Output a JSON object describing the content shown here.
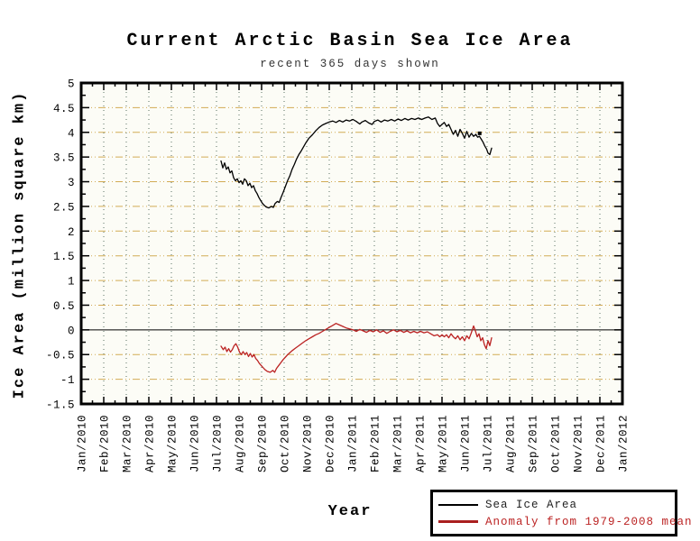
{
  "chart_data": {
    "type": "line",
    "title": "Current Arctic Basin Sea Ice Area",
    "subtitle": "recent 365 days shown",
    "xlabel": "Year",
    "ylabel": "Ice Area (million square km)",
    "legend_position": "bottom-right",
    "grid": {
      "on": true,
      "h_color": "#d2ab55",
      "v_color": "#577061",
      "zero_line_color": "#000000"
    },
    "plot_bg": "#fcfcf6",
    "ylim": [
      -1.5,
      5
    ],
    "xlim_months": [
      0,
      24
    ],
    "y_minor_step": 0.25,
    "x_minor_step_months": 0.5,
    "y_ticks": [
      {
        "value": 5,
        "label": "5"
      },
      {
        "value": 4.5,
        "label": "4.5"
      },
      {
        "value": 4,
        "label": "4"
      },
      {
        "value": 3.5,
        "label": "3.5"
      },
      {
        "value": 3,
        "label": "3"
      },
      {
        "value": 2.5,
        "label": "2.5"
      },
      {
        "value": 2,
        "label": "2"
      },
      {
        "value": 1.5,
        "label": "1.5"
      },
      {
        "value": 1,
        "label": "1"
      },
      {
        "value": 0.5,
        "label": "0.5"
      },
      {
        "value": 0,
        "label": "0"
      },
      {
        "value": -0.5,
        "label": "-0.5"
      },
      {
        "value": -1,
        "label": "-1"
      },
      {
        "value": -1.5,
        "label": "-1.5"
      }
    ],
    "x_tick_labels": [
      "Jan/2010",
      "Feb/2010",
      "Mar/2010",
      "Apr/2010",
      "May/2010",
      "Jun/2010",
      "Jul/2010",
      "Aug/2010",
      "Sep/2010",
      "Oct/2010",
      "Nov/2010",
      "Dec/2010",
      "Jan/2011",
      "Feb/2011",
      "Mar/2011",
      "Apr/2011",
      "May/2011",
      "Jun/2011",
      "Jul/2011",
      "Aug/2011",
      "Sep/2011",
      "Oct/2011",
      "Nov/2011",
      "Dec/2011",
      "Jan/2012"
    ],
    "marker": {
      "x": 17.67,
      "y": 3.98,
      "color": "#000000"
    },
    "series": [
      {
        "name": "Sea Ice Area",
        "color": "#000000",
        "width": 1.3,
        "points": [
          [
            6.2,
            3.42
          ],
          [
            6.28,
            3.28
          ],
          [
            6.36,
            3.38
          ],
          [
            6.44,
            3.25
          ],
          [
            6.52,
            3.3
          ],
          [
            6.6,
            3.18
          ],
          [
            6.68,
            3.22
          ],
          [
            6.76,
            3.08
          ],
          [
            6.84,
            3.02
          ],
          [
            6.92,
            3.06
          ],
          [
            7.0,
            2.98
          ],
          [
            7.08,
            3.02
          ],
          [
            7.16,
            2.95
          ],
          [
            7.24,
            3.06
          ],
          [
            7.32,
            3.02
          ],
          [
            7.4,
            2.92
          ],
          [
            7.48,
            2.97
          ],
          [
            7.56,
            2.88
          ],
          [
            7.64,
            2.92
          ],
          [
            7.72,
            2.82
          ],
          [
            7.8,
            2.76
          ],
          [
            7.88,
            2.68
          ],
          [
            7.96,
            2.62
          ],
          [
            8.04,
            2.56
          ],
          [
            8.12,
            2.52
          ],
          [
            8.2,
            2.49
          ],
          [
            8.32,
            2.47
          ],
          [
            8.44,
            2.5
          ],
          [
            8.52,
            2.48
          ],
          [
            8.6,
            2.56
          ],
          [
            8.7,
            2.6
          ],
          [
            8.78,
            2.58
          ],
          [
            8.86,
            2.68
          ],
          [
            8.95,
            2.78
          ],
          [
            9.05,
            2.9
          ],
          [
            9.15,
            3.02
          ],
          [
            9.25,
            3.12
          ],
          [
            9.35,
            3.25
          ],
          [
            9.45,
            3.35
          ],
          [
            9.55,
            3.46
          ],
          [
            9.65,
            3.55
          ],
          [
            9.75,
            3.62
          ],
          [
            9.85,
            3.7
          ],
          [
            9.95,
            3.78
          ],
          [
            10.1,
            3.88
          ],
          [
            10.25,
            3.95
          ],
          [
            10.4,
            4.03
          ],
          [
            10.55,
            4.1
          ],
          [
            10.7,
            4.15
          ],
          [
            10.85,
            4.18
          ],
          [
            11.0,
            4.21
          ],
          [
            11.15,
            4.23
          ],
          [
            11.3,
            4.2
          ],
          [
            11.45,
            4.24
          ],
          [
            11.6,
            4.21
          ],
          [
            11.75,
            4.25
          ],
          [
            11.9,
            4.23
          ],
          [
            12.05,
            4.26
          ],
          [
            12.2,
            4.22
          ],
          [
            12.35,
            4.17
          ],
          [
            12.45,
            4.21
          ],
          [
            12.6,
            4.24
          ],
          [
            12.75,
            4.19
          ],
          [
            12.9,
            4.16
          ],
          [
            13.0,
            4.22
          ],
          [
            13.15,
            4.25
          ],
          [
            13.3,
            4.21
          ],
          [
            13.45,
            4.25
          ],
          [
            13.6,
            4.23
          ],
          [
            13.75,
            4.26
          ],
          [
            13.9,
            4.23
          ],
          [
            14.05,
            4.27
          ],
          [
            14.2,
            4.24
          ],
          [
            14.35,
            4.28
          ],
          [
            14.5,
            4.25
          ],
          [
            14.65,
            4.28
          ],
          [
            14.8,
            4.26
          ],
          [
            14.95,
            4.29
          ],
          [
            15.1,
            4.26
          ],
          [
            15.25,
            4.29
          ],
          [
            15.4,
            4.31
          ],
          [
            15.55,
            4.26
          ],
          [
            15.7,
            4.29
          ],
          [
            15.8,
            4.18
          ],
          [
            15.9,
            4.12
          ],
          [
            16.0,
            4.16
          ],
          [
            16.1,
            4.2
          ],
          [
            16.2,
            4.12
          ],
          [
            16.3,
            4.16
          ],
          [
            16.4,
            4.06
          ],
          [
            16.5,
            3.96
          ],
          [
            16.6,
            4.04
          ],
          [
            16.7,
            3.92
          ],
          [
            16.8,
            4.06
          ],
          [
            16.9,
            3.98
          ],
          [
            17.0,
            3.88
          ],
          [
            17.1,
            4.02
          ],
          [
            17.2,
            3.9
          ],
          [
            17.3,
            3.98
          ],
          [
            17.4,
            3.92
          ],
          [
            17.5,
            3.96
          ],
          [
            17.58,
            3.9
          ],
          [
            17.66,
            3.92
          ],
          [
            17.74,
            3.86
          ],
          [
            17.82,
            3.8
          ],
          [
            17.9,
            3.72
          ],
          [
            17.98,
            3.66
          ],
          [
            18.04,
            3.58
          ],
          [
            18.12,
            3.55
          ],
          [
            18.2,
            3.68
          ]
        ]
      },
      {
        "name": "Anomaly from 1979-2008 mean",
        "color": "#bb2222",
        "width": 1.3,
        "points": [
          [
            6.2,
            -0.33
          ],
          [
            6.3,
            -0.4
          ],
          [
            6.38,
            -0.35
          ],
          [
            6.46,
            -0.44
          ],
          [
            6.54,
            -0.38
          ],
          [
            6.62,
            -0.45
          ],
          [
            6.7,
            -0.4
          ],
          [
            6.78,
            -0.32
          ],
          [
            6.86,
            -0.28
          ],
          [
            6.94,
            -0.35
          ],
          [
            7.02,
            -0.45
          ],
          [
            7.1,
            -0.5
          ],
          [
            7.18,
            -0.44
          ],
          [
            7.26,
            -0.5
          ],
          [
            7.34,
            -0.46
          ],
          [
            7.42,
            -0.54
          ],
          [
            7.5,
            -0.48
          ],
          [
            7.58,
            -0.55
          ],
          [
            7.66,
            -0.5
          ],
          [
            7.74,
            -0.58
          ],
          [
            7.82,
            -0.62
          ],
          [
            7.9,
            -0.68
          ],
          [
            7.98,
            -0.72
          ],
          [
            8.06,
            -0.76
          ],
          [
            8.14,
            -0.8
          ],
          [
            8.25,
            -0.84
          ],
          [
            8.38,
            -0.86
          ],
          [
            8.5,
            -0.82
          ],
          [
            8.58,
            -0.86
          ],
          [
            8.66,
            -0.78
          ],
          [
            8.76,
            -0.72
          ],
          [
            8.86,
            -0.66
          ],
          [
            8.96,
            -0.6
          ],
          [
            9.06,
            -0.55
          ],
          [
            9.16,
            -0.5
          ],
          [
            9.26,
            -0.46
          ],
          [
            9.36,
            -0.42
          ],
          [
            9.5,
            -0.37
          ],
          [
            9.65,
            -0.32
          ],
          [
            9.8,
            -0.27
          ],
          [
            9.95,
            -0.22
          ],
          [
            10.1,
            -0.18
          ],
          [
            10.25,
            -0.14
          ],
          [
            10.4,
            -0.1
          ],
          [
            10.55,
            -0.07
          ],
          [
            10.7,
            -0.03
          ],
          [
            10.85,
            0.01
          ],
          [
            11.0,
            0.05
          ],
          [
            11.15,
            0.09
          ],
          [
            11.3,
            0.13
          ],
          [
            11.45,
            0.1
          ],
          [
            11.6,
            0.07
          ],
          [
            11.75,
            0.04
          ],
          [
            11.9,
            0.02
          ],
          [
            12.05,
            0.0
          ],
          [
            12.2,
            -0.03
          ],
          [
            12.35,
            0.01
          ],
          [
            12.5,
            -0.02
          ],
          [
            12.65,
            -0.05
          ],
          [
            12.8,
            -0.01
          ],
          [
            12.95,
            -0.04
          ],
          [
            13.1,
            0.0
          ],
          [
            13.25,
            -0.05
          ],
          [
            13.4,
            -0.02
          ],
          [
            13.55,
            -0.07
          ],
          [
            13.7,
            -0.03
          ],
          [
            13.85,
            0.0
          ],
          [
            14.0,
            -0.04
          ],
          [
            14.15,
            -0.01
          ],
          [
            14.3,
            -0.05
          ],
          [
            14.45,
            -0.02
          ],
          [
            14.6,
            -0.06
          ],
          [
            14.75,
            -0.03
          ],
          [
            14.9,
            -0.06
          ],
          [
            15.05,
            -0.03
          ],
          [
            15.2,
            -0.06
          ],
          [
            15.35,
            -0.04
          ],
          [
            15.5,
            -0.08
          ],
          [
            15.65,
            -0.12
          ],
          [
            15.8,
            -0.1
          ],
          [
            15.9,
            -0.14
          ],
          [
            16.0,
            -0.1
          ],
          [
            16.1,
            -0.14
          ],
          [
            16.2,
            -0.1
          ],
          [
            16.3,
            -0.16
          ],
          [
            16.4,
            -0.08
          ],
          [
            16.5,
            -0.14
          ],
          [
            16.6,
            -0.18
          ],
          [
            16.7,
            -0.12
          ],
          [
            16.8,
            -0.2
          ],
          [
            16.9,
            -0.14
          ],
          [
            17.0,
            -0.22
          ],
          [
            17.1,
            -0.12
          ],
          [
            17.2,
            -0.18
          ],
          [
            17.3,
            -0.06
          ],
          [
            17.4,
            0.08
          ],
          [
            17.48,
            -0.02
          ],
          [
            17.56,
            -0.14
          ],
          [
            17.64,
            -0.08
          ],
          [
            17.72,
            -0.22
          ],
          [
            17.8,
            -0.16
          ],
          [
            17.88,
            -0.3
          ],
          [
            17.96,
            -0.38
          ],
          [
            18.04,
            -0.22
          ],
          [
            18.12,
            -0.32
          ],
          [
            18.2,
            -0.16
          ]
        ]
      }
    ]
  }
}
